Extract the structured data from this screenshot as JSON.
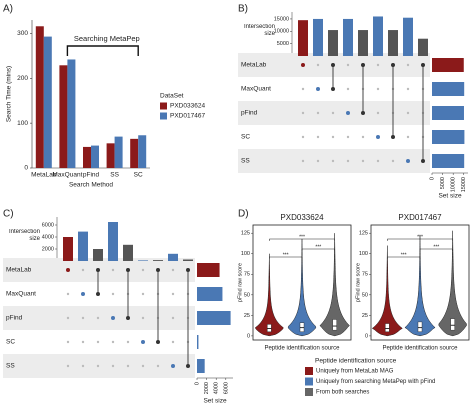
{
  "chart_data": [
    {
      "type": "bar",
      "title": "A)",
      "ylabel": "Search Time (mins)",
      "xlabel": "Search Method",
      "categories": [
        "MetaLab",
        "MaxQuant",
        "pFind",
        "SS",
        "SC"
      ],
      "series": [
        {
          "name": "PXD033624",
          "color": "#8b1a1a",
          "values": [
            316,
            229,
            47,
            55,
            65
          ]
        },
        {
          "name": "PXD017467",
          "color": "#4a78b4",
          "values": [
            293,
            242,
            50,
            70,
            73
          ]
        }
      ],
      "ylim": [
        0,
        330
      ],
      "yticks": [
        0,
        100,
        200,
        300
      ],
      "legend_title": "DataSet",
      "annotation": "Searching MetaPep"
    },
    {
      "type": "upset",
      "title": "B)",
      "ylabel": "Intersection size",
      "xlabel": "Set size",
      "sets": [
        "MetaLab",
        "MaxQuant",
        "pFind",
        "SC",
        "SS"
      ],
      "set_sizes": [
        15000,
        15200,
        15100,
        15300,
        15200
      ],
      "set_colors": [
        "#8b1a1a",
        "#4a78b4",
        "#4a78b4",
        "#4a78b4",
        "#4a78b4"
      ],
      "intersections": [
        [
          0
        ],
        [
          1
        ],
        [
          0,
          1
        ],
        [
          2
        ],
        [
          0,
          2
        ],
        [
          3
        ],
        [
          0,
          3
        ],
        [
          4
        ],
        [
          0,
          4
        ]
      ],
      "values": [
        14500,
        15000,
        10500,
        15000,
        10500,
        16000,
        10500,
        15500,
        7000
      ],
      "colors": [
        "#8b1a1a",
        "#4a78b4",
        "#555555",
        "#4a78b4",
        "#555555",
        "#4a78b4",
        "#555555",
        "#4a78b4",
        "#555555"
      ],
      "ylim": [
        0,
        17000
      ],
      "yticks": [
        0,
        5000,
        10000,
        15000
      ],
      "xlim": [
        0,
        17000
      ],
      "xticks": [
        0,
        5000,
        10000,
        15000
      ]
    },
    {
      "type": "upset",
      "title": "C)",
      "ylabel": "Intersection size",
      "xlabel": "Set size",
      "sets": [
        "MetaLab",
        "MaxQuant",
        "pFind",
        "SC",
        "SS"
      ],
      "set_sizes": [
        4700,
        5300,
        7000,
        300,
        1600
      ],
      "set_colors": [
        "#8b1a1a",
        "#4a78b4",
        "#4a78b4",
        "#4a78b4",
        "#4a78b4"
      ],
      "intersections": [
        [
          0
        ],
        [
          1
        ],
        [
          0,
          1
        ],
        [
          2
        ],
        [
          0,
          2
        ],
        [
          3
        ],
        [
          0,
          3
        ],
        [
          4
        ],
        [
          0,
          4
        ]
      ],
      "values": [
        4000,
        4900,
        2000,
        6500,
        2700,
        100,
        150,
        1200,
        250
      ],
      "colors": [
        "#8b1a1a",
        "#4a78b4",
        "#555555",
        "#4a78b4",
        "#555555",
        "#4a78b4",
        "#555555",
        "#4a78b4",
        "#555555"
      ],
      "ylim": [
        0,
        7000
      ],
      "yticks": [
        0,
        2000,
        4000,
        6000
      ],
      "xlim": [
        0,
        7500
      ],
      "xticks": [
        0,
        2000,
        4000,
        6000
      ]
    },
    {
      "type": "violin",
      "title": "D)",
      "ylabel": "pFind raw score",
      "xlabel": "Peptide identification source",
      "ylim": [
        -5,
        135
      ],
      "yticks": [
        0,
        25,
        50,
        75,
        100,
        125
      ],
      "legend_title": "Peptide identification source",
      "series": [
        {
          "name": "Uniquely from MetaLab MAG",
          "color": "#8b1a1a"
        },
        {
          "name": "Uniquely from searching MetaPep with pFind",
          "color": "#4a78b4"
        },
        {
          "name": "From both searches",
          "color": "#666666"
        }
      ],
      "panels": [
        {
          "title": "PXD033624",
          "min": [
            0,
            0,
            0
          ],
          "q1": [
            5,
            5,
            7
          ],
          "median": [
            9,
            10,
            12
          ],
          "q3": [
            14,
            16,
            20
          ],
          "max": [
            100,
            118,
            125
          ],
          "annotations": [
            "***",
            "***",
            "***"
          ]
        },
        {
          "title": "PXD017467",
          "min": [
            0,
            0,
            0
          ],
          "q1": [
            5,
            5,
            7
          ],
          "median": [
            9,
            10,
            13
          ],
          "q3": [
            15,
            17,
            21
          ],
          "max": [
            110,
            122,
            128
          ],
          "annotations": [
            "***",
            "***",
            "***"
          ]
        }
      ]
    }
  ]
}
